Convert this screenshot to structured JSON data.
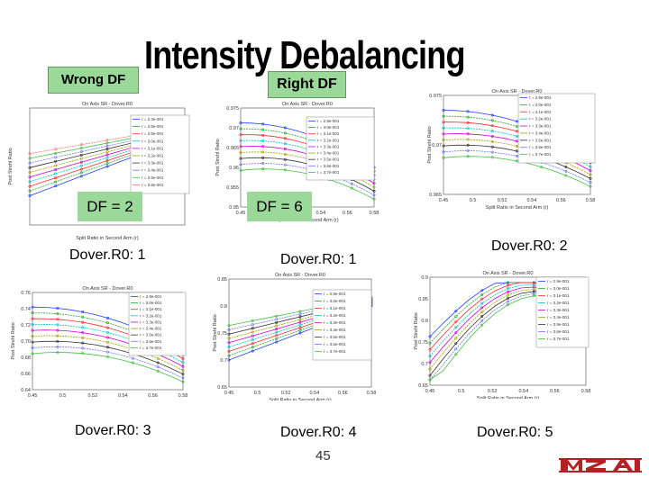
{
  "slide": {
    "title": "Intensity Debalancing",
    "wrong_label": "Wrong DF",
    "right_label": "Right DF",
    "df_left": "DF = 2",
    "df_right": "DF = 6",
    "page_number": "45",
    "captions": [
      "Dover.R0: 1",
      "Dover.R0: 1",
      "Dover.R0: 2",
      "Dover.R0: 3",
      "Dover.R0: 4",
      "Dover.R0: 5"
    ],
    "logo_text": "MZA"
  },
  "colors": {
    "badge_green": "#9bd99b",
    "series": [
      "#1f3fff",
      "#2ca02c",
      "#ff2a2a",
      "#00c0c0",
      "#d000d0",
      "#a0a000",
      "#333333",
      "#7070ff",
      "#40c040",
      "#ff7070"
    ]
  },
  "plots": [
    {
      "name": "plot-a",
      "title": "On Axis SR - Dover.R0",
      "ylabel": "Post Strehl Ratio",
      "xlabel": "Split Ratio in Second Arm (r)",
      "legend": [
        "r = 2.3e-001",
        "r = 2.8e-001",
        "r = 2.8e-001",
        "r = 3.0e-001",
        "r = 3.1e-001",
        "r = 3.2e-001",
        "r = 3.3e-001",
        "r = 3.4e-001",
        "r = 3.5e-001",
        "r = 3.6e-001"
      ]
    },
    {
      "name": "plot-b",
      "title": "On Axis SR - Dover.R0",
      "ylabel": "Post Strehl Ratio",
      "xlabel": "Split Ratio in Second Arm (r)",
      "ticks_x": [
        "0.45",
        "0.5",
        "0.52",
        "0.54",
        "0.56",
        "0.58"
      ],
      "ticks_y": [
        "0.975",
        "0.97",
        "0.965",
        "0.96",
        "0.955",
        "0.95"
      ],
      "legend": [
        "r = 2.9e-001",
        "r = 3.0e-001",
        "r = 3.1e-001",
        "r = 3.2e-001",
        "r = 3.3e-001",
        "r = 3.4e-001",
        "r = 3.5e-001",
        "r = 3.6e-001",
        "r = 3.7e-001"
      ]
    },
    {
      "name": "plot-c",
      "title": "On Axis SR - Dover.R0",
      "ylabel": "Post Strehl Ratio",
      "xlabel": "Split Ratio in Second Arm (r)",
      "ticks_x": [
        "0.45",
        "0.5",
        "0.52",
        "0.54",
        "0.56",
        "0.58"
      ],
      "ticks_y": [
        "0.975",
        "0.97",
        "0.965"
      ],
      "legend": [
        "r = 2.9e-001",
        "r = 3.0e-001",
        "r = 3.1e-001",
        "r = 3.2e-001",
        "r = 3.3e-001",
        "r = 3.4e-001",
        "r = 3.5e-001",
        "r = 3.6e-001",
        "r = 3.7e-001"
      ]
    },
    {
      "name": "plot-d",
      "title": "On Axis SR - Dover.R0",
      "ylabel": "Post Strehl Ratio",
      "xlabel": "Split Ratio in Second Arm (r)",
      "ticks_x": [
        "0.45",
        "0.5",
        "0.52",
        "0.54",
        "0.56",
        "0.58"
      ],
      "ticks_y": [
        "0.76",
        "0.74",
        "0.72",
        "0.70",
        "0.68",
        "0.66",
        "0.64"
      ],
      "legend": [
        "r = 2.9e-001",
        "r = 3.0e-001",
        "r = 3.1e-001",
        "r = 3.2e-001",
        "r = 3.3e-001",
        "r = 3.4e-001",
        "r = 3.5e-001",
        "r = 3.6e-001",
        "r = 3.7e-001"
      ]
    },
    {
      "name": "plot-e",
      "title": "On Axis SR - Dover.R0",
      "ylabel": "Post Strehl Ratio",
      "xlabel": "Split Ratio in Second Arm (r)",
      "ticks_x": [
        "0.45",
        "0.5",
        "0.52",
        "0.54",
        "0.56",
        "0.58"
      ],
      "ticks_y": [
        "0.85",
        "0.8",
        "0.75",
        "0.7",
        "0.65"
      ],
      "legend": [
        "r = 2.9e-001",
        "r = 3.0e-001",
        "r = 3.1e-001",
        "r = 3.2e-001",
        "r = 3.3e-001",
        "r = 3.4e-001",
        "r = 3.5e-001",
        "r = 3.6e-001",
        "r = 3.7e-001"
      ]
    },
    {
      "name": "plot-f",
      "title": "On Axis SR - Dover.R0",
      "ylabel": "Post Strehl Ratio",
      "xlabel": "Split Ratio in Second Arm (r)",
      "ticks_x": [
        "0.45",
        "0.5",
        "0.52",
        "0.54",
        "0.56",
        "0.58"
      ],
      "ticks_y": [
        "0.9",
        "0.85",
        "0.8",
        "0.75",
        "0.7",
        "0.65"
      ],
      "legend": [
        "r = 2.9e-001",
        "r = 3.0e-001",
        "r = 3.1e-001",
        "r = 3.2e-001",
        "r = 3.3e-001",
        "r = 3.4e-001",
        "r = 3.5e-001",
        "r = 3.6e-001",
        "r = 3.7e-001"
      ]
    }
  ]
}
